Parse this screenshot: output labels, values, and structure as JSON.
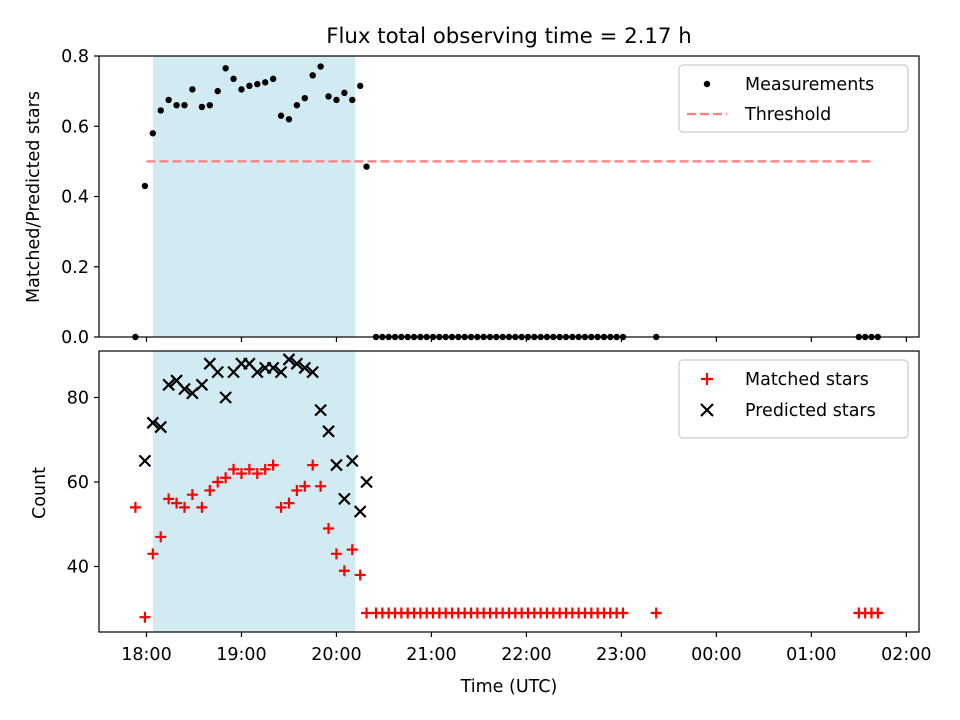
{
  "chart_data": [
    {
      "type": "scatter",
      "title": "Flux total observing time = 2.17 h",
      "xlabel": "",
      "ylabel": "Matched/Predicted stars",
      "xlim": [
        "17:30",
        "02:08"
      ],
      "ylim": [
        0,
        0.8
      ],
      "yticks": [
        "0.0",
        "0.2",
        "0.4",
        "0.6",
        "0.8"
      ],
      "highlight": {
        "start": "18:04",
        "end": "20:12",
        "color": "#add8e6"
      },
      "threshold": {
        "name": "Threshold",
        "value": 0.5,
        "x_start": "18:00",
        "x_end": "01:40",
        "color": "#ff7f7f"
      },
      "series": [
        {
          "name": "Measurements",
          "color": "#000000",
          "marker": "dot",
          "points": [
            [
              "17:53",
              0.0
            ],
            [
              "17:59",
              0.43
            ],
            [
              "18:04",
              0.58
            ],
            [
              "18:09",
              0.645
            ],
            [
              "18:14",
              0.675
            ],
            [
              "18:19",
              0.66
            ],
            [
              "18:24",
              0.66
            ],
            [
              "18:29",
              0.705
            ],
            [
              "18:35",
              0.655
            ],
            [
              "18:40",
              0.66
            ],
            [
              "18:45",
              0.7
            ],
            [
              "18:50",
              0.765
            ],
            [
              "18:55",
              0.735
            ],
            [
              "19:00",
              0.705
            ],
            [
              "19:05",
              0.715
            ],
            [
              "19:10",
              0.72
            ],
            [
              "19:15",
              0.725
            ],
            [
              "19:20",
              0.735
            ],
            [
              "19:25",
              0.63
            ],
            [
              "19:30",
              0.62
            ],
            [
              "19:35",
              0.66
            ],
            [
              "19:40",
              0.68
            ],
            [
              "19:45",
              0.745
            ],
            [
              "19:50",
              0.77
            ],
            [
              "19:55",
              0.685
            ],
            [
              "20:00",
              0.675
            ],
            [
              "20:05",
              0.695
            ],
            [
              "20:10",
              0.675
            ],
            [
              "20:15",
              0.715
            ],
            [
              "20:19",
              0.485
            ],
            [
              "20:25",
              0.0
            ],
            [
              "20:29",
              0.0
            ],
            [
              "20:33",
              0.0
            ],
            [
              "20:37",
              0.0
            ],
            [
              "20:41",
              0.0
            ],
            [
              "20:45",
              0.0
            ],
            [
              "20:49",
              0.0
            ],
            [
              "20:53",
              0.0
            ],
            [
              "20:57",
              0.0
            ],
            [
              "21:01",
              0.0
            ],
            [
              "21:05",
              0.0
            ],
            [
              "21:09",
              0.0
            ],
            [
              "21:13",
              0.0
            ],
            [
              "21:17",
              0.0
            ],
            [
              "21:21",
              0.0
            ],
            [
              "21:25",
              0.0
            ],
            [
              "21:29",
              0.0
            ],
            [
              "21:33",
              0.0
            ],
            [
              "21:37",
              0.0
            ],
            [
              "21:41",
              0.0
            ],
            [
              "21:45",
              0.0
            ],
            [
              "21:49",
              0.0
            ],
            [
              "21:53",
              0.0
            ],
            [
              "21:57",
              0.0
            ],
            [
              "22:01",
              0.0
            ],
            [
              "22:05",
              0.0
            ],
            [
              "22:09",
              0.0
            ],
            [
              "22:13",
              0.0
            ],
            [
              "22:17",
              0.0
            ],
            [
              "22:21",
              0.0
            ],
            [
              "22:25",
              0.0
            ],
            [
              "22:29",
              0.0
            ],
            [
              "22:33",
              0.0
            ],
            [
              "22:37",
              0.0
            ],
            [
              "22:41",
              0.0
            ],
            [
              "22:45",
              0.0
            ],
            [
              "22:49",
              0.0
            ],
            [
              "22:53",
              0.0
            ],
            [
              "22:57",
              0.0
            ],
            [
              "23:01",
              0.0
            ],
            [
              "23:22",
              0.0
            ],
            [
              "01:30",
              0.0
            ],
            [
              "01:34",
              0.0
            ],
            [
              "01:38",
              0.0
            ],
            [
              "01:42",
              0.0
            ]
          ]
        }
      ],
      "legend": "top-right",
      "grid": false
    },
    {
      "type": "scatter",
      "title": "",
      "xlabel": "Time (UTC)",
      "ylabel": "Count",
      "xlim": [
        "17:30",
        "02:08"
      ],
      "ylim": [
        24.5,
        91
      ],
      "yticks": [
        "40",
        "60",
        "80"
      ],
      "xticks": [
        "18:00",
        "19:00",
        "20:00",
        "21:00",
        "22:00",
        "23:00",
        "00:00",
        "01:00",
        "02:00"
      ],
      "highlight": {
        "start": "18:04",
        "end": "20:12",
        "color": "#add8e6"
      },
      "series": [
        {
          "name": "Matched stars",
          "color": "#ff0000",
          "marker": "plus",
          "points": [
            [
              "17:53",
              54
            ],
            [
              "17:59",
              28
            ],
            [
              "18:04",
              43
            ],
            [
              "18:09",
              47
            ],
            [
              "18:14",
              56
            ],
            [
              "18:19",
              55
            ],
            [
              "18:24",
              54
            ],
            [
              "18:29",
              57
            ],
            [
              "18:35",
              54
            ],
            [
              "18:40",
              58
            ],
            [
              "18:45",
              60
            ],
            [
              "18:50",
              61
            ],
            [
              "18:55",
              63
            ],
            [
              "19:00",
              62
            ],
            [
              "19:05",
              63
            ],
            [
              "19:10",
              62
            ],
            [
              "19:15",
              63
            ],
            [
              "19:20",
              64
            ],
            [
              "19:25",
              54
            ],
            [
              "19:30",
              55
            ],
            [
              "19:35",
              58
            ],
            [
              "19:40",
              59
            ],
            [
              "19:45",
              64
            ],
            [
              "19:50",
              59
            ],
            [
              "19:55",
              49
            ],
            [
              "20:00",
              43
            ],
            [
              "20:05",
              39
            ],
            [
              "20:10",
              44
            ],
            [
              "20:15",
              38
            ],
            [
              "20:19",
              29
            ],
            [
              "20:25",
              29
            ],
            [
              "20:29",
              29
            ],
            [
              "20:33",
              29
            ],
            [
              "20:37",
              29
            ],
            [
              "20:41",
              29
            ],
            [
              "20:45",
              29
            ],
            [
              "20:49",
              29
            ],
            [
              "20:53",
              29
            ],
            [
              "20:57",
              29
            ],
            [
              "21:01",
              29
            ],
            [
              "21:05",
              29
            ],
            [
              "21:09",
              29
            ],
            [
              "21:13",
              29
            ],
            [
              "21:17",
              29
            ],
            [
              "21:21",
              29
            ],
            [
              "21:25",
              29
            ],
            [
              "21:29",
              29
            ],
            [
              "21:33",
              29
            ],
            [
              "21:37",
              29
            ],
            [
              "21:41",
              29
            ],
            [
              "21:45",
              29
            ],
            [
              "21:49",
              29
            ],
            [
              "21:53",
              29
            ],
            [
              "21:57",
              29
            ],
            [
              "22:01",
              29
            ],
            [
              "22:05",
              29
            ],
            [
              "22:09",
              29
            ],
            [
              "22:13",
              29
            ],
            [
              "22:17",
              29
            ],
            [
              "22:21",
              29
            ],
            [
              "22:25",
              29
            ],
            [
              "22:29",
              29
            ],
            [
              "22:33",
              29
            ],
            [
              "22:37",
              29
            ],
            [
              "22:41",
              29
            ],
            [
              "22:45",
              29
            ],
            [
              "22:49",
              29
            ],
            [
              "22:53",
              29
            ],
            [
              "22:57",
              29
            ],
            [
              "23:01",
              29
            ],
            [
              "23:22",
              29
            ],
            [
              "01:30",
              29
            ],
            [
              "01:34",
              29
            ],
            [
              "01:38",
              29
            ],
            [
              "01:42",
              29
            ]
          ]
        },
        {
          "name": "Predicted stars",
          "color": "#000000",
          "marker": "x",
          "points": [
            [
              "17:59",
              65
            ],
            [
              "18:04",
              74
            ],
            [
              "18:09",
              73
            ],
            [
              "18:14",
              83
            ],
            [
              "18:19",
              84
            ],
            [
              "18:24",
              82
            ],
            [
              "18:29",
              81
            ],
            [
              "18:35",
              83
            ],
            [
              "18:40",
              88
            ],
            [
              "18:45",
              86
            ],
            [
              "18:50",
              80
            ],
            [
              "18:55",
              86
            ],
            [
              "19:00",
              88
            ],
            [
              "19:05",
              88
            ],
            [
              "19:10",
              86
            ],
            [
              "19:15",
              87
            ],
            [
              "19:20",
              87
            ],
            [
              "19:25",
              86
            ],
            [
              "19:30",
              89
            ],
            [
              "19:35",
              88
            ],
            [
              "19:40",
              87
            ],
            [
              "19:45",
              86
            ],
            [
              "19:50",
              77
            ],
            [
              "19:55",
              72
            ],
            [
              "20:00",
              64
            ],
            [
              "20:05",
              56
            ],
            [
              "20:10",
              65
            ],
            [
              "20:15",
              53
            ],
            [
              "20:19",
              60
            ]
          ]
        }
      ],
      "legend": "top-right",
      "grid": false
    }
  ]
}
